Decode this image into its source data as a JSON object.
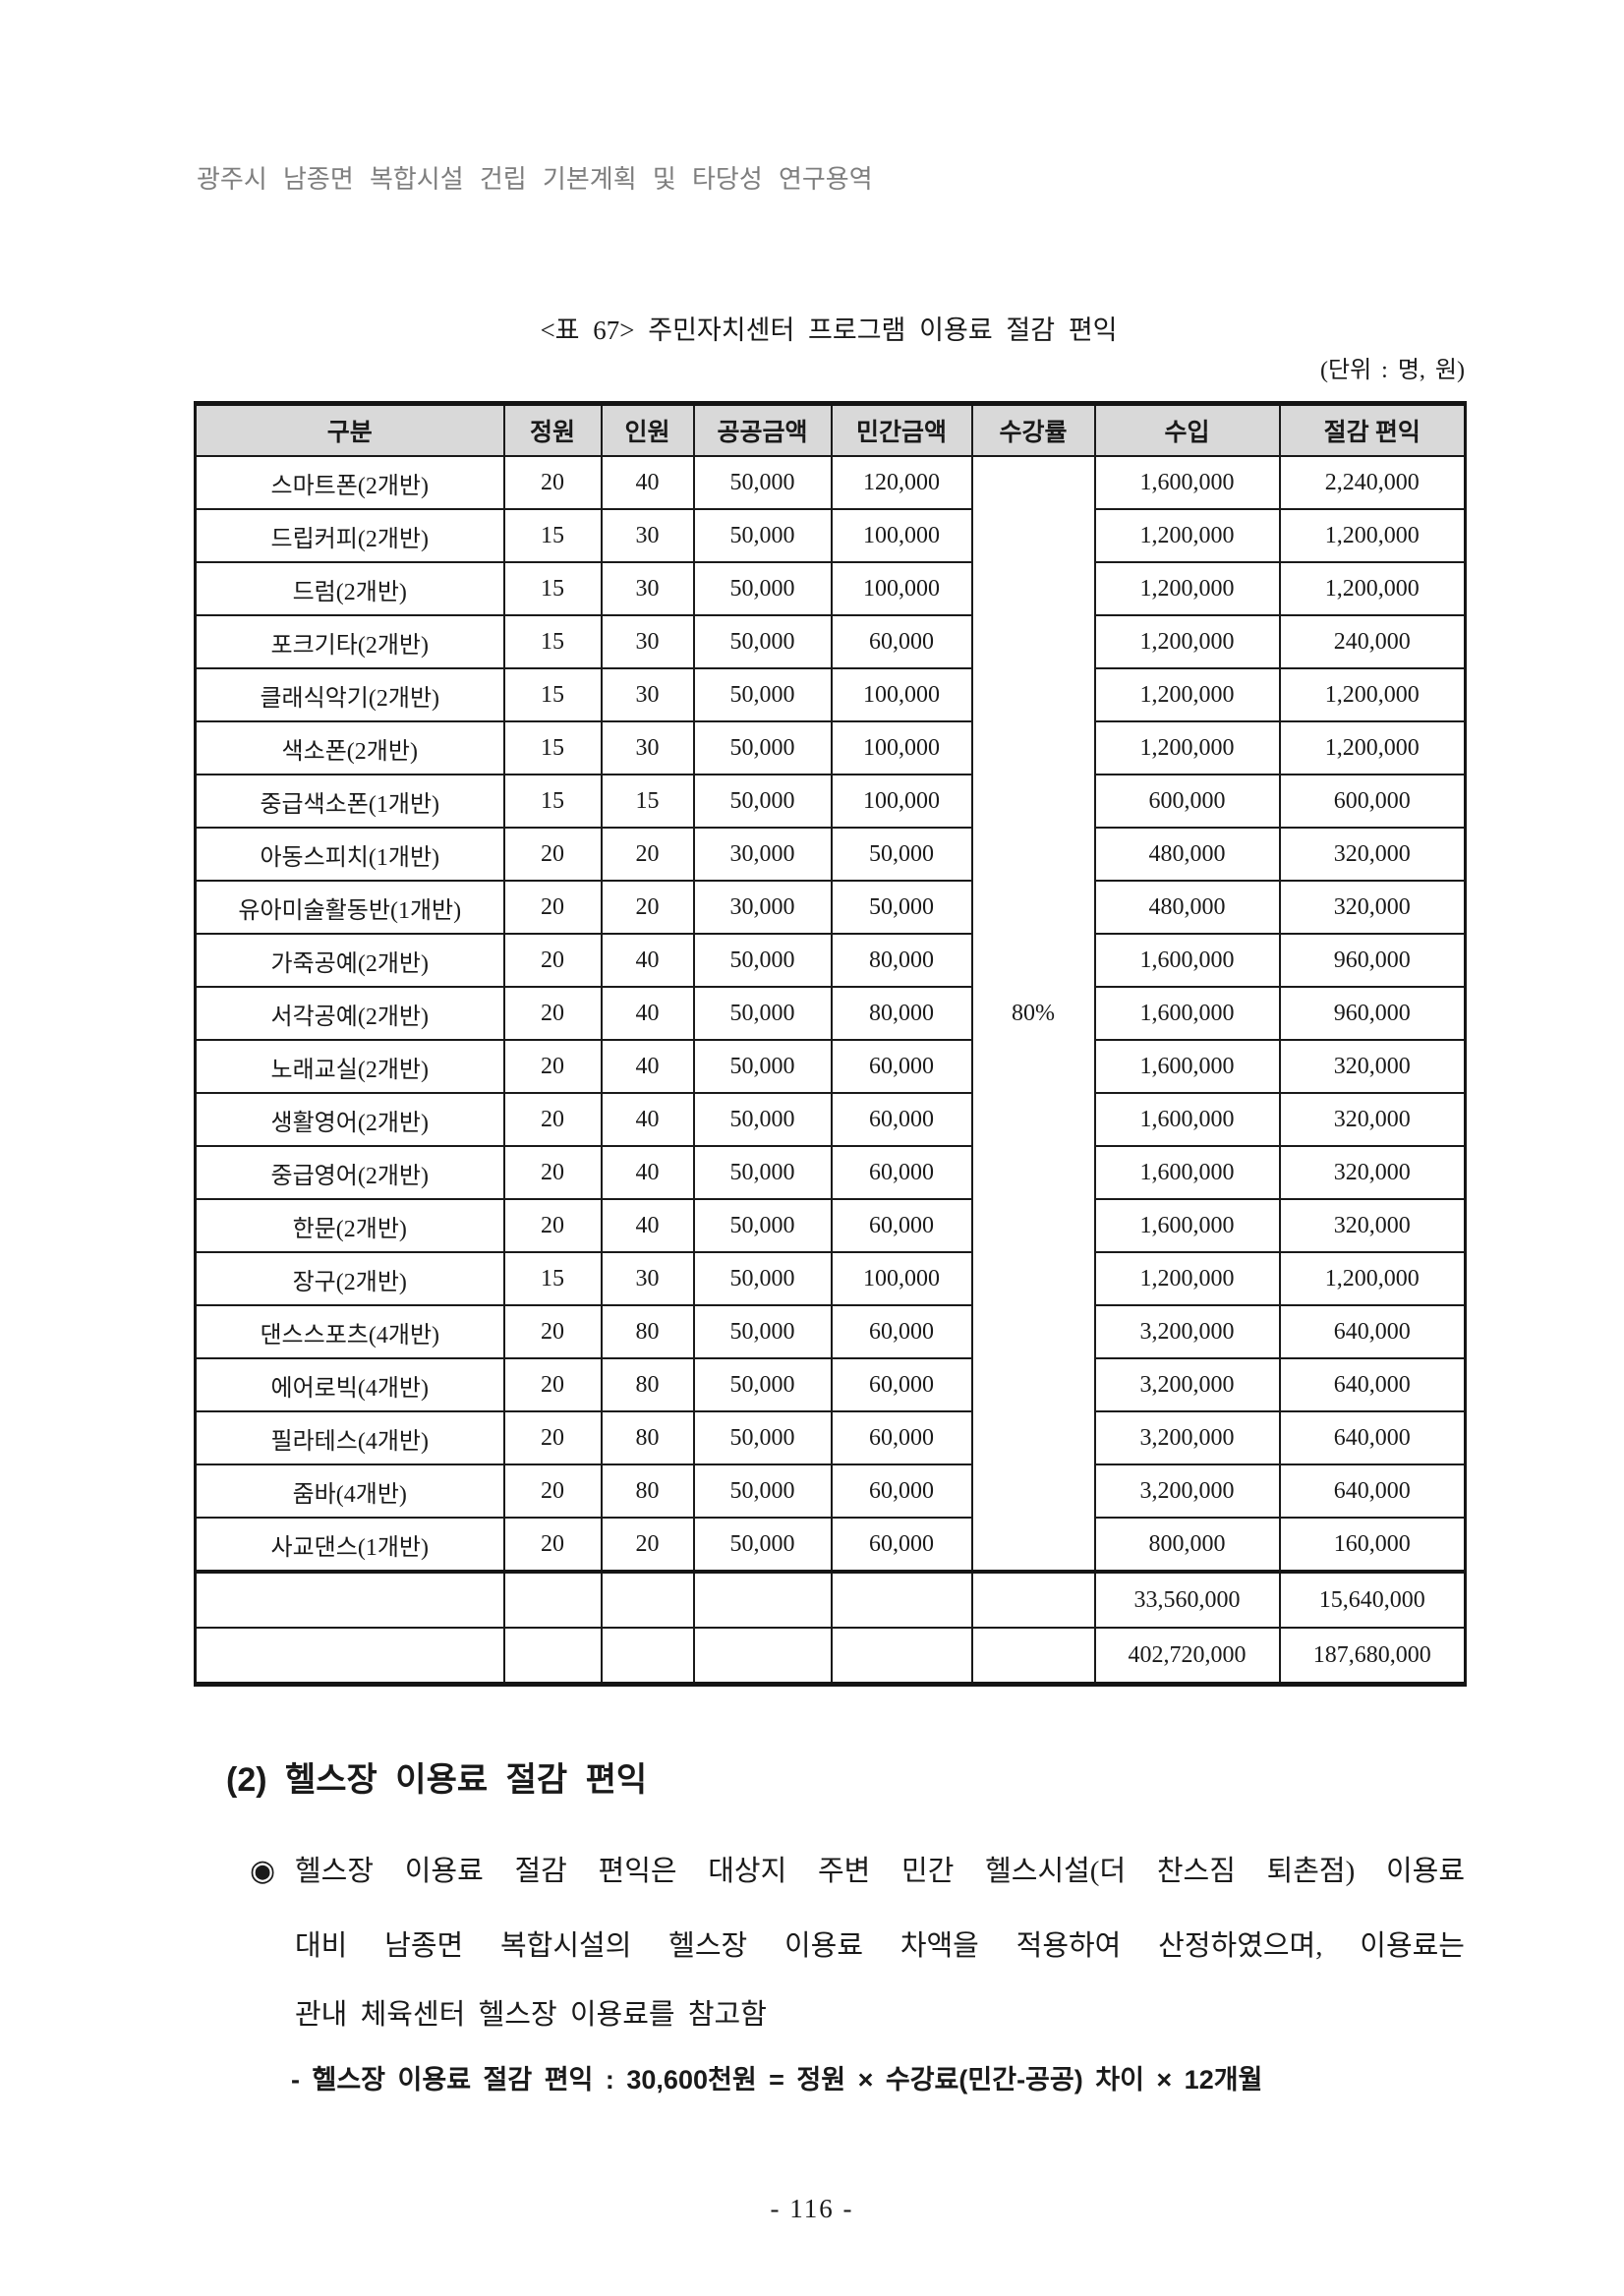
{
  "page": {
    "running_header": "광주시 남종면 복합시설 건립 기본계획 및 타당성 연구용역",
    "page_number": "- 116 -"
  },
  "table": {
    "title": "<표 67> 주민자치센터 프로그램 이용료 절감 편익",
    "unit_note": "(단위 : 명, 원)",
    "columns": [
      "구분",
      "정원",
      "인원",
      "공공금액",
      "민간금액",
      "수강률",
      "수입",
      "절감 편익"
    ],
    "attendance_rate": "80%",
    "rows": [
      [
        "스마트폰(2개반)",
        "20",
        "40",
        "50,000",
        "120,000",
        "1,600,000",
        "2,240,000"
      ],
      [
        "드립커피(2개반)",
        "15",
        "30",
        "50,000",
        "100,000",
        "1,200,000",
        "1,200,000"
      ],
      [
        "드럼(2개반)",
        "15",
        "30",
        "50,000",
        "100,000",
        "1,200,000",
        "1,200,000"
      ],
      [
        "포크기타(2개반)",
        "15",
        "30",
        "50,000",
        "60,000",
        "1,200,000",
        "240,000"
      ],
      [
        "클래식악기(2개반)",
        "15",
        "30",
        "50,000",
        "100,000",
        "1,200,000",
        "1,200,000"
      ],
      [
        "색소폰(2개반)",
        "15",
        "30",
        "50,000",
        "100,000",
        "1,200,000",
        "1,200,000"
      ],
      [
        "중급색소폰(1개반)",
        "15",
        "15",
        "50,000",
        "100,000",
        "600,000",
        "600,000"
      ],
      [
        "아동스피치(1개반)",
        "20",
        "20",
        "30,000",
        "50,000",
        "480,000",
        "320,000"
      ],
      [
        "유아미술활동반(1개반)",
        "20",
        "20",
        "30,000",
        "50,000",
        "480,000",
        "320,000"
      ],
      [
        "가죽공예(2개반)",
        "20",
        "40",
        "50,000",
        "80,000",
        "1,600,000",
        "960,000"
      ],
      [
        "서각공예(2개반)",
        "20",
        "40",
        "50,000",
        "80,000",
        "1,600,000",
        "960,000"
      ],
      [
        "노래교실(2개반)",
        "20",
        "40",
        "50,000",
        "60,000",
        "1,600,000",
        "320,000"
      ],
      [
        "생활영어(2개반)",
        "20",
        "40",
        "50,000",
        "60,000",
        "1,600,000",
        "320,000"
      ],
      [
        "중급영어(2개반)",
        "20",
        "40",
        "50,000",
        "60,000",
        "1,600,000",
        "320,000"
      ],
      [
        "한문(2개반)",
        "20",
        "40",
        "50,000",
        "60,000",
        "1,600,000",
        "320,000"
      ],
      [
        "장구(2개반)",
        "15",
        "30",
        "50,000",
        "100,000",
        "1,200,000",
        "1,200,000"
      ],
      [
        "댄스스포츠(4개반)",
        "20",
        "80",
        "50,000",
        "60,000",
        "3,200,000",
        "640,000"
      ],
      [
        "에어로빅(4개반)",
        "20",
        "80",
        "50,000",
        "60,000",
        "3,200,000",
        "640,000"
      ],
      [
        "필라테스(4개반)",
        "20",
        "80",
        "50,000",
        "60,000",
        "3,200,000",
        "640,000"
      ],
      [
        "줌바(4개반)",
        "20",
        "80",
        "50,000",
        "60,000",
        "3,200,000",
        "640,000"
      ],
      [
        "사교댄스(1개반)",
        "20",
        "20",
        "50,000",
        "60,000",
        "800,000",
        "160,000"
      ]
    ],
    "summary_rows": [
      [
        "",
        "",
        "",
        "",
        "",
        "",
        "33,560,000",
        "15,640,000"
      ],
      [
        "",
        "",
        "",
        "",
        "",
        "",
        "402,720,000",
        "187,680,000"
      ]
    ]
  },
  "section": {
    "heading": "(2) 헬스장 이용료 절감 편익",
    "bullet_symbol": "◉",
    "lines": [
      "헬스장 이용료 절감 편익은 대상지 주변 민간 헬스시설(더 찬스짐 퇴촌점) 이용료",
      "대비 남종면 복합시설의 헬스장 이용료 차액을 적용하여 산정하였으며, 이용료는",
      "관내 체육센터 헬스장 이용료를 참고함"
    ],
    "sub_item": "- 헬스장 이용료 절감 편익 : 30,600천원 = 정원 × 수강료(민간-공공) 차이 × 12개월"
  },
  "colors": {
    "header_bg": "#d9d9d9",
    "border": "#1a1a1a",
    "running_header_text": "#7e7e7e"
  }
}
